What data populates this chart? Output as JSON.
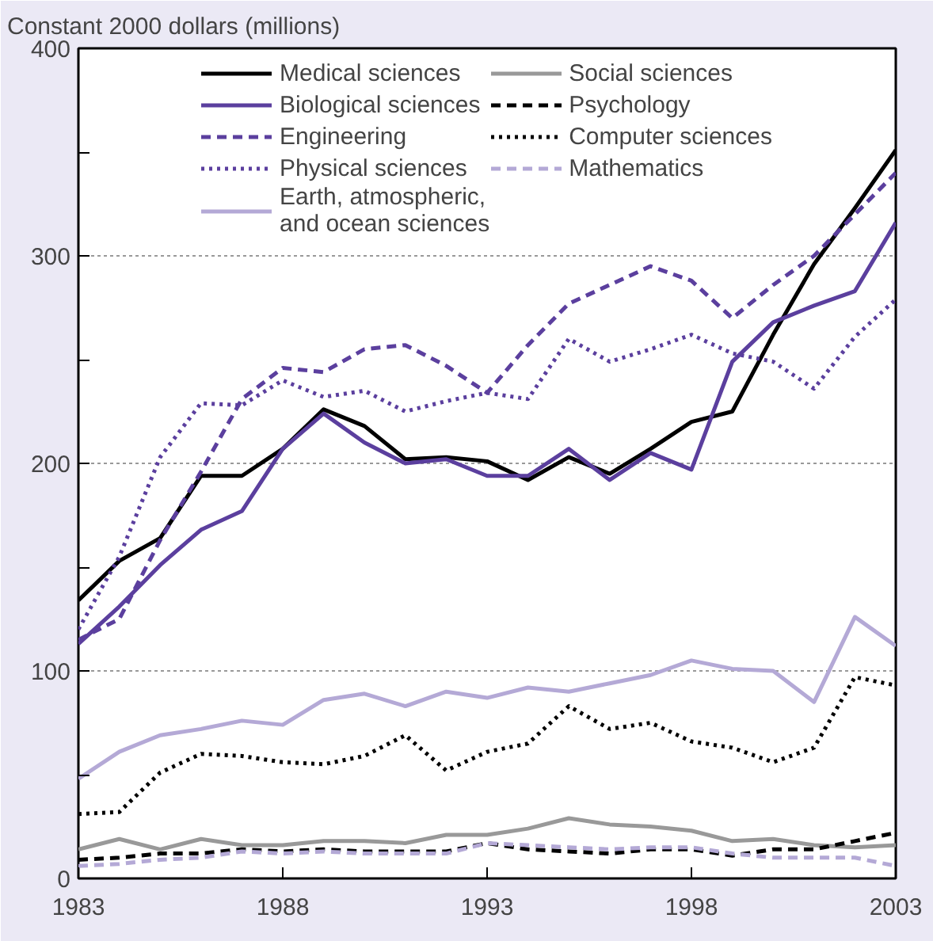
{
  "chart_data": {
    "type": "line",
    "ylabel": "Constant 2000 dollars (millions)",
    "x": [
      1983,
      1984,
      1985,
      1986,
      1987,
      1988,
      1989,
      1990,
      1991,
      1992,
      1993,
      1994,
      1995,
      1996,
      1997,
      1998,
      1999,
      2000,
      2001,
      2002,
      2003
    ],
    "xlim": [
      1983,
      2003
    ],
    "xticks": [
      1983,
      1988,
      1993,
      1998,
      2003
    ],
    "ylim": [
      0,
      400
    ],
    "yticks": [
      0,
      {
        "value": 50,
        "label": null
      },
      100,
      {
        "value": 150,
        "label": null
      },
      200,
      {
        "value": 250,
        "label": null
      },
      300,
      {
        "value": 350,
        "label": null
      },
      400
    ],
    "grid": "y",
    "legend": "top",
    "series": [
      {
        "name": "Medical sciences",
        "color": "#000000",
        "line_style": "solid",
        "values": [
          134,
          153,
          164,
          194,
          194,
          207,
          226,
          218,
          202,
          203,
          201,
          192,
          203,
          195,
          207,
          220,
          225,
          262,
          296,
          323,
          351
        ]
      },
      {
        "name": "Biological sciences",
        "color": "#5b3f9e",
        "line_style": "solid",
        "values": [
          113,
          131,
          151,
          168,
          177,
          207,
          224,
          210,
          200,
          202,
          194,
          194,
          207,
          192,
          205,
          197,
          249,
          268,
          276,
          283,
          316
        ]
      },
      {
        "name": "Engineering",
        "color": "#5b3f9e",
        "line_style": "dashed",
        "values": [
          115,
          125,
          163,
          196,
          231,
          246,
          244,
          255,
          257,
          247,
          234,
          257,
          277,
          286,
          295,
          288,
          270,
          286,
          300,
          320,
          340
        ]
      },
      {
        "name": "Physical sciences",
        "color": "#5b3f9e",
        "line_style": "dotted",
        "values": [
          120,
          155,
          203,
          229,
          228,
          240,
          232,
          235,
          225,
          230,
          234,
          231,
          260,
          249,
          255,
          262,
          253,
          249,
          236,
          261,
          279
        ]
      },
      {
        "name": "Earth, atmospheric,\nand ocean sciences",
        "color": "#b4a9d6",
        "line_style": "solid",
        "values": [
          48,
          61,
          69,
          72,
          76,
          74,
          86,
          89,
          83,
          90,
          87,
          92,
          90,
          94,
          98,
          105,
          101,
          100,
          85,
          126,
          112
        ]
      },
      {
        "name": "Social sciences",
        "color": "#999999",
        "line_style": "solid",
        "values": [
          14,
          19,
          14,
          19,
          16,
          16,
          18,
          18,
          17,
          21,
          21,
          24,
          29,
          26,
          25,
          23,
          18,
          19,
          16,
          15,
          16
        ]
      },
      {
        "name": "Psychology",
        "color": "#000000",
        "line_style": "dashed",
        "values": [
          9,
          10,
          12,
          12,
          14,
          13,
          14,
          13,
          13,
          13,
          17,
          14,
          13,
          12,
          14,
          14,
          11,
          14,
          14,
          18,
          22
        ]
      },
      {
        "name": "Computer sciences",
        "color": "#000000",
        "line_style": "dotted",
        "values": [
          31,
          32,
          51,
          60,
          59,
          56,
          55,
          59,
          69,
          52,
          61,
          65,
          83,
          72,
          75,
          66,
          63,
          56,
          63,
          97,
          93
        ]
      },
      {
        "name": "Mathematics",
        "color": "#b4a9d6",
        "line_style": "dashed",
        "values": [
          6,
          7,
          9,
          10,
          13,
          12,
          13,
          12,
          12,
          12,
          17,
          16,
          15,
          14,
          15,
          15,
          12,
          10,
          10,
          10,
          6
        ]
      }
    ]
  }
}
